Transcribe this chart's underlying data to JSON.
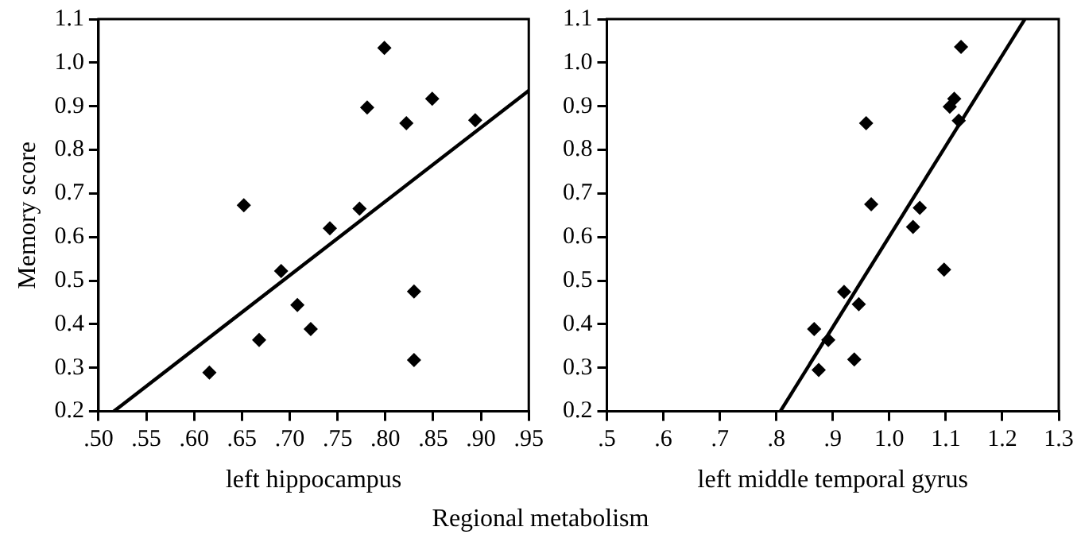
{
  "chart_data": [
    {
      "type": "scatter",
      "ylabel": "Memory score",
      "xlabel": "left hippocampus",
      "annotations": [
        "Regional metabolism"
      ],
      "marker": "diamond",
      "grid": false,
      "legend": false,
      "xlim": [
        0.5,
        0.95
      ],
      "xticks": [
        {
          "value": 0.5,
          "label": ".50"
        },
        {
          "value": 0.55,
          "label": ".55"
        },
        {
          "value": 0.6,
          "label": ".60"
        },
        {
          "value": 0.65,
          "label": ".65"
        },
        {
          "value": 0.7,
          "label": ".70"
        },
        {
          "value": 0.75,
          "label": ".75"
        },
        {
          "value": 0.8,
          "label": ".80"
        },
        {
          "value": 0.85,
          "label": ".85"
        },
        {
          "value": 0.9,
          "label": ".90"
        },
        {
          "value": 0.95,
          "label": ".95"
        }
      ],
      "ylim": [
        0.2,
        1.1
      ],
      "yticks": [
        0.2,
        0.3,
        0.4,
        0.5,
        0.6,
        0.7,
        0.8,
        0.9,
        {
          "value": 1,
          "label": "1.0"
        },
        1.1
      ],
      "series": [
        {
          "color": "#000000",
          "x": [
            0.616,
            0.652,
            0.668,
            0.691,
            0.708,
            0.722,
            0.742,
            0.773,
            0.781,
            0.799,
            0.822,
            0.83,
            0.83,
            0.849,
            0.894
          ],
          "values": [
            0.289,
            0.673,
            0.364,
            0.522,
            0.444,
            0.389,
            0.62,
            0.665,
            0.897,
            1.034,
            0.861,
            0.475,
            0.318,
            0.917,
            0.868
          ]
        },
        {
          "type": "line",
          "color": "#000000",
          "marker": "none",
          "x": [
            0.516,
            0.95
          ],
          "values": [
            0.2,
            0.936
          ]
        }
      ]
    },
    {
      "type": "scatter",
      "xlabel": "left middle temporal gyrus",
      "marker": "diamond",
      "grid": false,
      "legend": false,
      "xlim": [
        0.5,
        1.3
      ],
      "xticks": [
        {
          "value": 0.5,
          "label": ".5"
        },
        {
          "value": 0.6,
          "label": ".6"
        },
        {
          "value": 0.7,
          "label": ".7"
        },
        {
          "value": 0.8,
          "label": ".8"
        },
        {
          "value": 0.9,
          "label": ".9"
        },
        {
          "value": 1,
          "label": "1.0"
        },
        1.1,
        1.2,
        1.3
      ],
      "ylim": [
        0.2,
        1.1
      ],
      "yticks": [
        0.2,
        0.3,
        0.4,
        0.5,
        0.6,
        0.7,
        0.8,
        0.9,
        {
          "value": 1,
          "label": "1.0"
        },
        1.1
      ],
      "series": [
        {
          "color": "#000000",
          "x": [
            0.867,
            0.875,
            0.892,
            0.92,
            0.938,
            0.946,
            0.959,
            0.968,
            1.042,
            1.054,
            1.097,
            1.107,
            1.115,
            1.123,
            1.127
          ],
          "values": [
            0.389,
            0.295,
            0.364,
            0.474,
            0.319,
            0.446,
            0.861,
            0.675,
            0.623,
            0.667,
            0.525,
            0.899,
            0.917,
            0.867,
            1.036
          ]
        },
        {
          "type": "line",
          "color": "#000000",
          "marker": "none",
          "x": [
            0.807,
            1.24
          ],
          "values": [
            0.2,
            1.1
          ]
        }
      ]
    }
  ]
}
